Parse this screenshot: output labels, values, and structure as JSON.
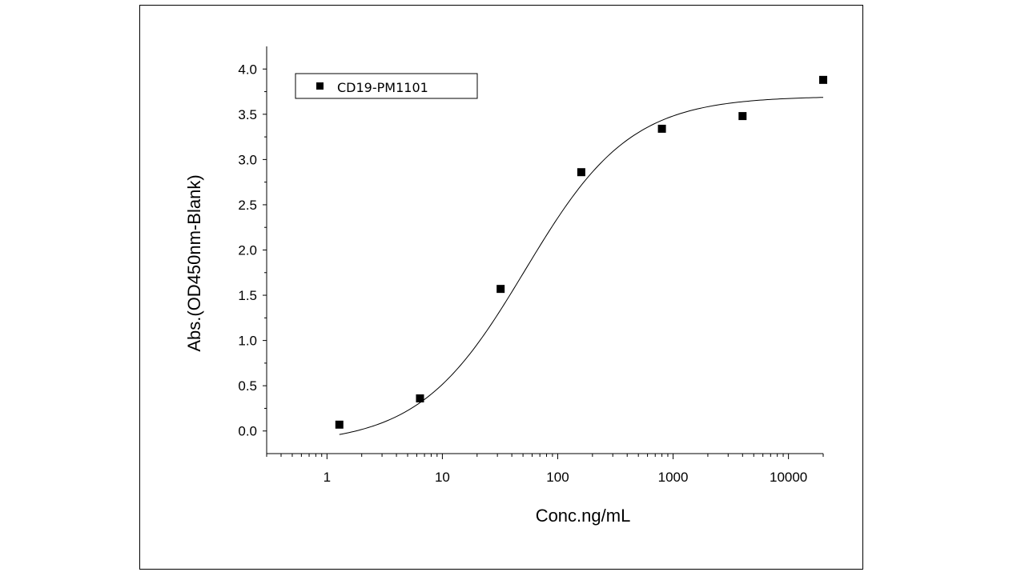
{
  "chart_data": {
    "type": "scatter",
    "xlabel": "Conc.ng/mL",
    "ylabel": "Abs.(OD450nm-Blank)",
    "x_scale": "log",
    "xlim": [
      0.3,
      20000
    ],
    "ylim": [
      -0.25,
      4.25
    ],
    "x_ticks": [
      1,
      10,
      100,
      1000,
      10000
    ],
    "x_tick_labels": [
      "1",
      "10",
      "100",
      "1000",
      "10000"
    ],
    "y_ticks": [
      0.0,
      0.5,
      1.0,
      1.5,
      2.0,
      2.5,
      3.0,
      3.5,
      4.0
    ],
    "y_tick_labels": [
      "0.0",
      "0.5",
      "1.0",
      "1.5",
      "2.0",
      "2.5",
      "3.0",
      "3.5",
      "4.0"
    ],
    "grid": false,
    "legend_position": "top-left",
    "series": [
      {
        "name": "CD19-PM1101",
        "marker": "square",
        "color": "#000000",
        "x": [
          1.28,
          6.4,
          32,
          160,
          800,
          4000,
          20000
        ],
        "y": [
          0.07,
          0.36,
          1.57,
          2.86,
          3.34,
          3.48,
          3.88
        ]
      }
    ],
    "fit_curve": {
      "type": "4PL",
      "bottom": -0.15,
      "top": 3.7,
      "ec50": 52,
      "hill": 0.95,
      "x_range": [
        1.28,
        20000
      ],
      "color": "#000000"
    }
  }
}
